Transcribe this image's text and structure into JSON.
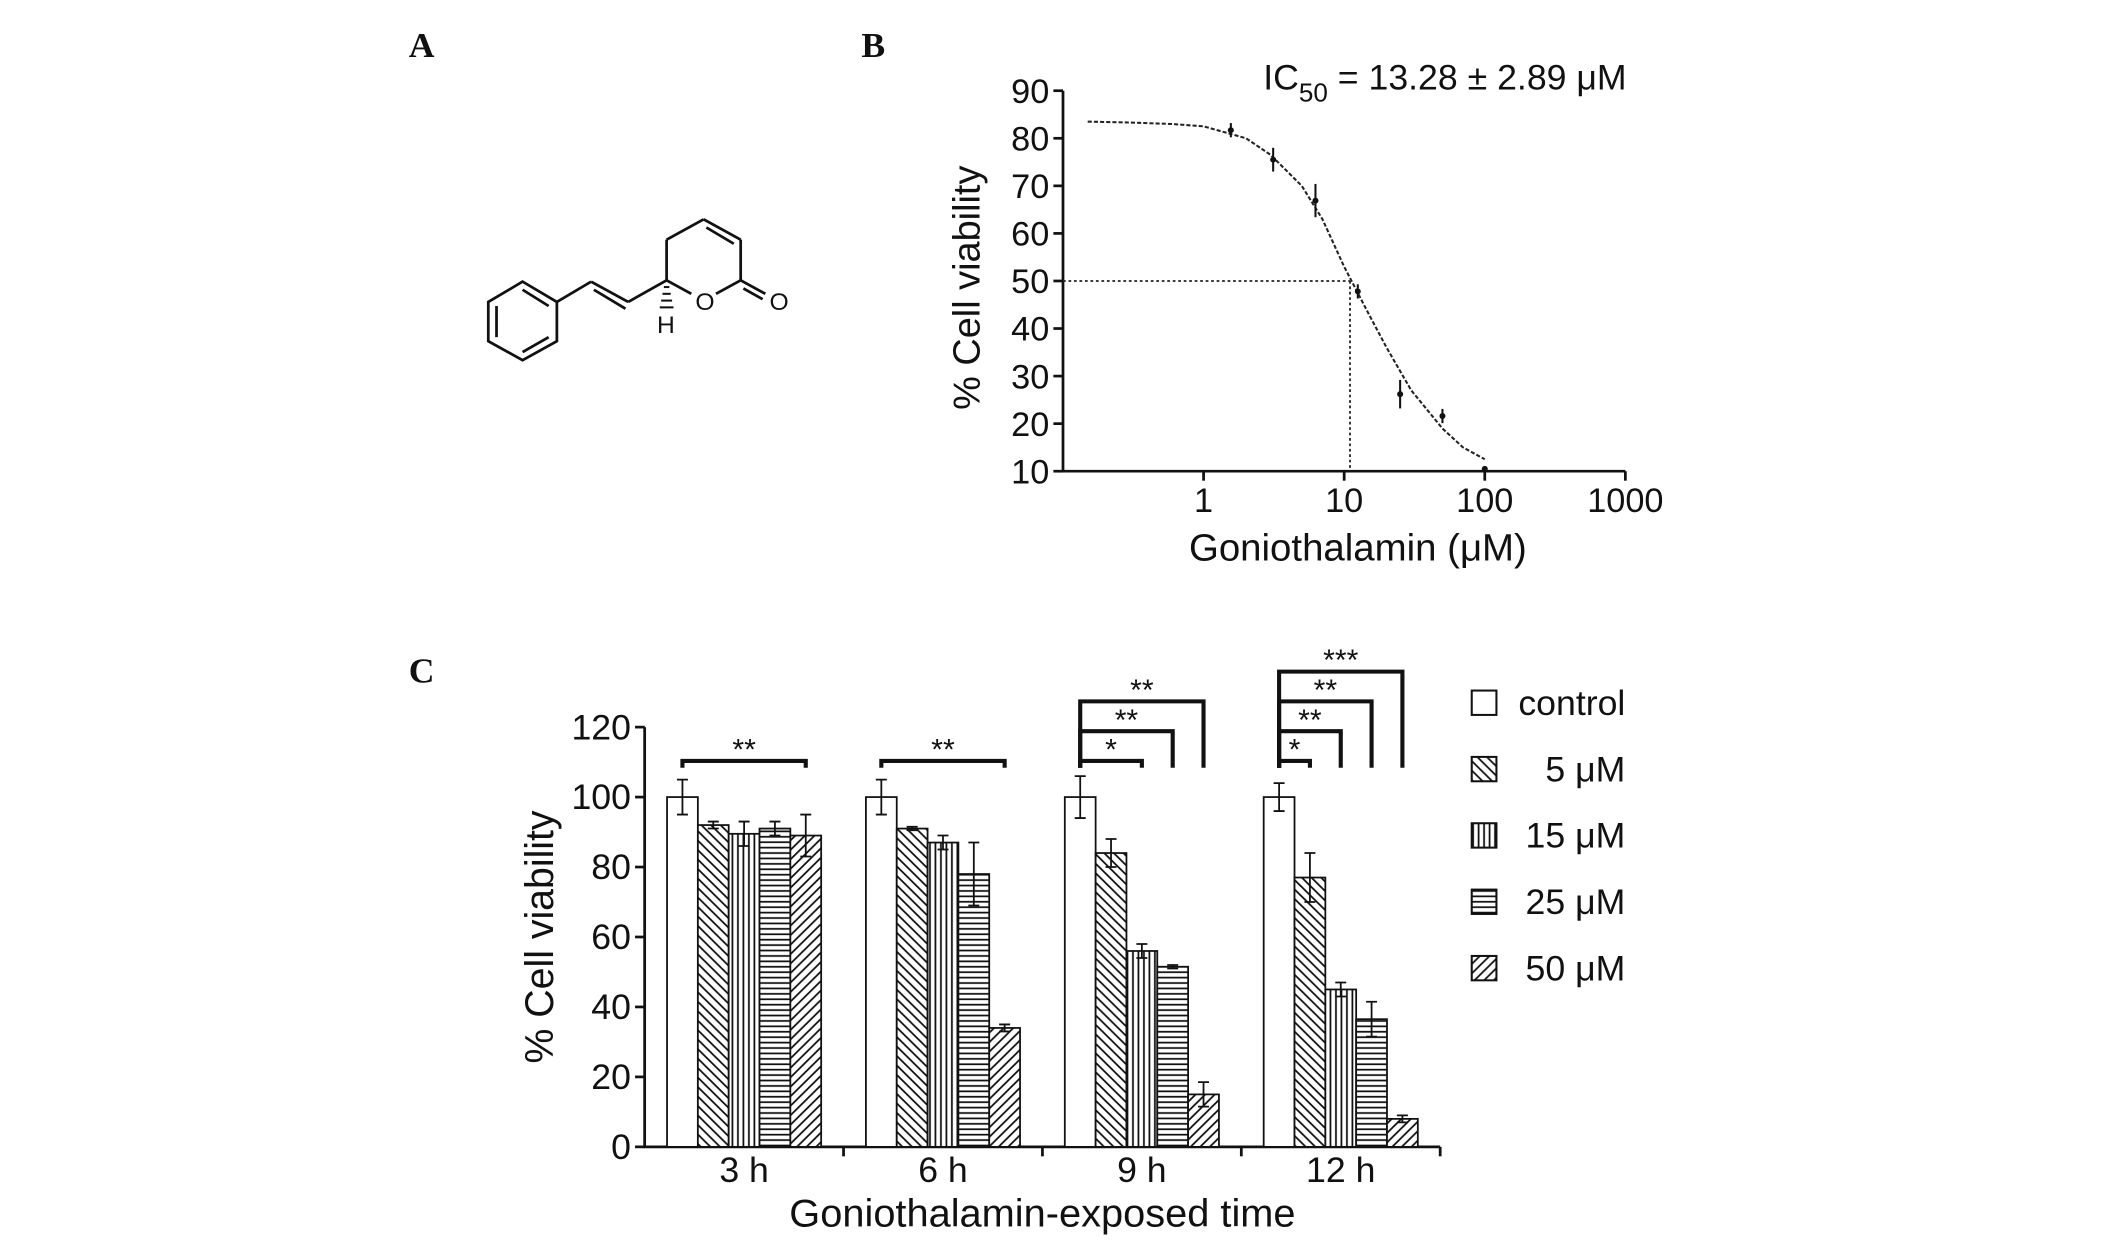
{
  "figure": {
    "panel_labels": [
      "A",
      "B",
      "C"
    ],
    "structure_labels": [
      "O",
      "O",
      "H"
    ]
  },
  "chart_data": [
    {
      "type": "dose_response",
      "annotation": {
        "prefix": "IC",
        "subscript": "50",
        "text": " = 13.28 ± 2.89 μM"
      },
      "x_label": "Goniothalamin (μM)",
      "y_label": "% Cell viability",
      "log_x": true,
      "xlim": [
        0.1,
        1000
      ],
      "xticks": [
        1,
        10,
        100,
        1000
      ],
      "ylim": [
        10,
        90
      ],
      "yticks": [
        10,
        20,
        30,
        40,
        50,
        60,
        70,
        80,
        90
      ],
      "x": [
        1.5625,
        3.125,
        6.25,
        12.5,
        25,
        50,
        100
      ],
      "values": [
        81.7,
        75.5,
        66.9,
        47.8,
        26.2,
        21.6,
        10.5
      ],
      "errors": [
        1.5,
        2.5,
        3.5,
        1.5,
        3,
        1.5,
        0.5
      ],
      "color": "#111111",
      "curve": {
        "x": [
          0.15,
          0.3,
          0.6,
          1,
          2,
          3,
          5,
          7,
          10,
          12,
          15,
          20,
          30,
          50,
          70,
          100
        ],
        "values": [
          83.5,
          83.3,
          83,
          82.5,
          80,
          76.5,
          70,
          63,
          53,
          48.5,
          43,
          36,
          27,
          19,
          15,
          12.5
        ]
      },
      "ic50_guide": {
        "x": 11,
        "y": 50
      }
    },
    {
      "type": "bar",
      "x_label": "Goniothalamin-exposed time",
      "y_label": "% Cell viability",
      "categories": [
        "3 h",
        "6 h",
        "9 h",
        "12 h"
      ],
      "ylim": [
        0,
        120
      ],
      "yticks": [
        0,
        20,
        40,
        60,
        80,
        100,
        120
      ],
      "legend": "right",
      "series": [
        {
          "name": "control",
          "color": "#111111",
          "pattern": "none",
          "values": [
            100,
            100,
            100,
            100
          ],
          "errors": [
            5,
            5,
            6,
            4
          ]
        },
        {
          "name": "5 μM",
          "color": "#111111",
          "pattern": "backslash",
          "values": [
            92,
            91,
            84,
            77
          ],
          "errors": [
            1,
            0.5,
            4,
            7
          ]
        },
        {
          "name": "15 μM",
          "color": "#111111",
          "pattern": "vertical",
          "values": [
            89.5,
            87,
            56,
            45
          ],
          "errors": [
            3.5,
            2,
            2,
            2
          ]
        },
        {
          "name": "25 μM",
          "color": "#111111",
          "pattern": "horizontal",
          "values": [
            91,
            78,
            51.5,
            36.5
          ],
          "errors": [
            2,
            9,
            0.5,
            5
          ]
        },
        {
          "name": "50 μM",
          "color": "#111111",
          "pattern": "slash",
          "values": [
            89,
            34,
            15,
            8
          ],
          "errors": [
            6,
            1,
            3.5,
            1
          ]
        }
      ],
      "significance": [
        {
          "group": 0,
          "from": 0,
          "to": 4,
          "label": "**"
        },
        {
          "group": 1,
          "from": 0,
          "to": 4,
          "label": "**"
        },
        {
          "group": 2,
          "from": 0,
          "to": 2,
          "label": "*"
        },
        {
          "group": 2,
          "from": 0,
          "to": 3,
          "label": "**"
        },
        {
          "group": 2,
          "from": 0,
          "to": 4,
          "label": "**"
        },
        {
          "group": 3,
          "from": 0,
          "to": 1,
          "label": "*"
        },
        {
          "group": 3,
          "from": 0,
          "to": 2,
          "label": "**"
        },
        {
          "group": 3,
          "from": 0,
          "to": 3,
          "label": "**"
        },
        {
          "group": 3,
          "from": 0,
          "to": 4,
          "label": "***"
        }
      ]
    }
  ]
}
